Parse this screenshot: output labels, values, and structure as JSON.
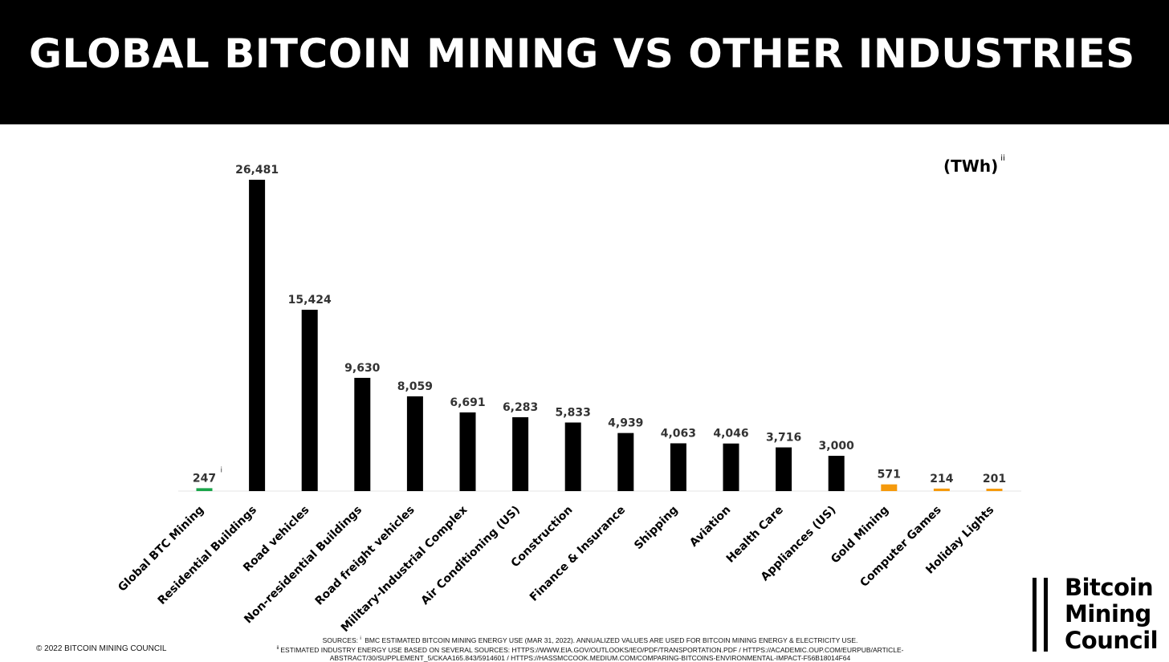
{
  "header": {
    "title": "GLOBAL BITCOIN MINING VS OTHER INDUSTRIES"
  },
  "unit": {
    "label": "(TWh)",
    "note_marker": "ii"
  },
  "chart_data": {
    "type": "bar",
    "title": "GLOBAL BITCOIN MINING VS OTHER INDUSTRIES",
    "ylabel": "(TWh)",
    "ylim": [
      0,
      26481
    ],
    "grid": false,
    "categories": [
      "Global BTC Mining",
      "Residential Buildings",
      "Road vehicles",
      "Non-residential Buildings",
      "Road freight vehicles",
      "Military-Industrial Complex",
      "Air Conditioning (US)",
      "Construction",
      "Finance & Insurance",
      "Shipping",
      "Aviation",
      "Health Care",
      "Appliances (US)",
      "Gold Mining",
      "Computer Games",
      "Holiday Lights"
    ],
    "values": [
      247,
      26481,
      15424,
      9630,
      8059,
      6691,
      6283,
      5833,
      4939,
      4063,
      4046,
      3716,
      3000,
      571,
      214,
      201
    ],
    "value_labels": [
      "247",
      "26,481",
      "15,424",
      "9,630",
      "8,059",
      "6,691",
      "6,283",
      "5,833",
      "4,939",
      "4,063",
      "4,046",
      "3,716",
      "3,000",
      "571",
      "214",
      "201"
    ],
    "colors": [
      "#1aa54a",
      "#000000",
      "#000000",
      "#000000",
      "#000000",
      "#000000",
      "#000000",
      "#000000",
      "#000000",
      "#000000",
      "#000000",
      "#000000",
      "#000000",
      "#f59a0c",
      "#f59a0c",
      "#f59a0c"
    ],
    "annotations": [
      {
        "category": "Global BTC Mining",
        "text": "i"
      }
    ]
  },
  "footer": {
    "copyright": "© 2022 BITCOIN MINING COUNCIL",
    "sources_line1_prefix": "SOURCES:",
    "sources_line1_marker": "i",
    "sources_line1": "BMC ESTIMATED BITCOIN MINING ENERGY USE (MAR 31, 2022). ANNUALIZED VALUES ARE USED FOR BITCOIN MINING ENERGY & ELECTRICITY USE.",
    "sources_line2_marker": "ii",
    "sources_line2": "ESTIMATED INDUSTRY ENERGY USE BASED ON SEVERAL SOURCES: HTTPS://WWW.EIA.GOV/OUTLOOKS/IEO/PDF/TRANSPORTATION.PDF / HTTPS://ACADEMIC.OUP.COM/EURPUB/ARTICLE-ABSTRACT/30/SUPPLEMENT_5/CKAA165.843/5914601 / HTTPS://HASSMCCOOK.MEDIUM.COM/COMPARING-BITCOINS-ENVIRONMENTAL-IMPACT-F56B18014F64"
  },
  "logo": {
    "line1": "Bitcoin",
    "line2": "Mining",
    "line3": "Council"
  }
}
